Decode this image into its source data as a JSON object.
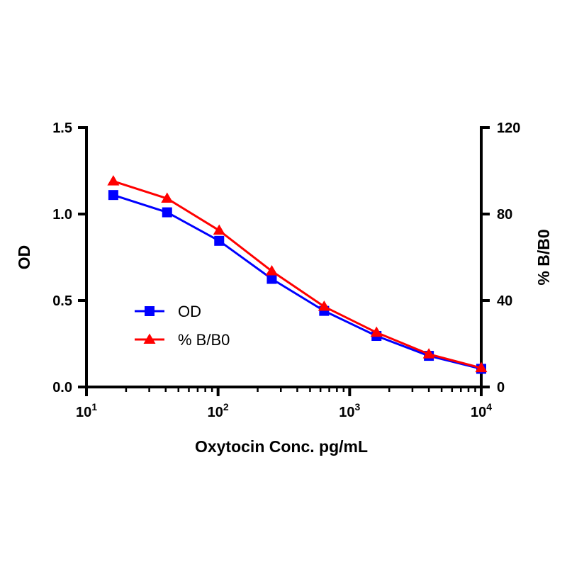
{
  "chart_data": {
    "type": "line",
    "xlabel": "Oxytocin Conc. pg/mL",
    "ylabel_left": "OD",
    "ylabel_right": "% B/B0",
    "x_scale": "log10",
    "xlim": [
      10,
      10000
    ],
    "x_ticks": [
      {
        "base": "10",
        "exp": "1",
        "value": 10
      },
      {
        "base": "10",
        "exp": "2",
        "value": 100
      },
      {
        "base": "10",
        "exp": "3",
        "value": 1000
      },
      {
        "base": "10",
        "exp": "4",
        "value": 10000
      }
    ],
    "ylim_left": [
      0,
      1.5
    ],
    "y_ticks_left": [
      "0.0",
      "0.5",
      "1.0",
      "1.5"
    ],
    "y_tick_values_left": [
      0,
      0.5,
      1.0,
      1.5
    ],
    "ylim_right": [
      0,
      120
    ],
    "y_ticks_right": [
      "0",
      "40",
      "80",
      "120"
    ],
    "y_tick_values_right": [
      0,
      40,
      80,
      120
    ],
    "grid": false,
    "legend_position": "center-left",
    "x": [
      16,
      41,
      102,
      256,
      640,
      1600,
      4000,
      10000
    ],
    "series": [
      {
        "name": "OD",
        "axis": "left",
        "color": "#0000ff",
        "marker": "square",
        "values": [
          1.11,
          1.01,
          0.845,
          0.625,
          0.44,
          0.295,
          0.18,
          0.105
        ]
      },
      {
        "name": "% B/B0",
        "axis": "right",
        "color": "#ff0000",
        "marker": "triangle",
        "values": [
          95.2,
          87.2,
          72.4,
          53.6,
          37.2,
          25.2,
          15.2,
          8.8
        ]
      }
    ]
  }
}
